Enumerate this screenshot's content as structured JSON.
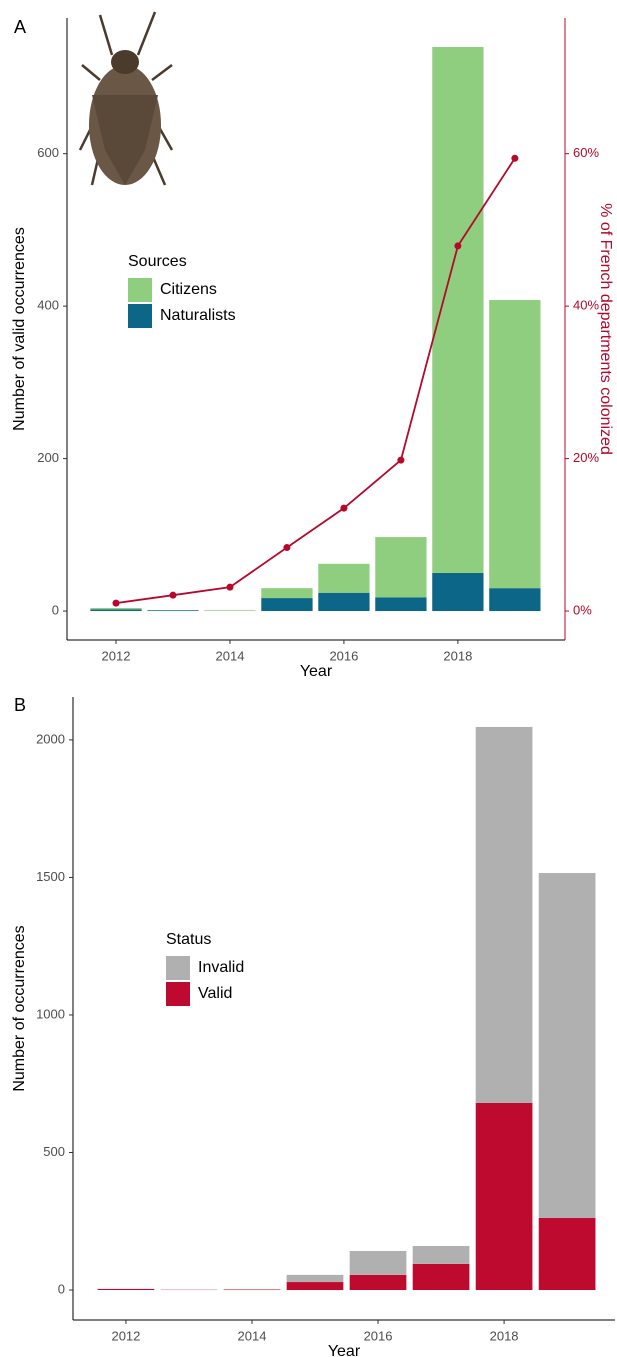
{
  "chart_data": [
    {
      "type": "bar",
      "panel_label": "A",
      "x": [
        2012,
        2013,
        2014,
        2015,
        2016,
        2017,
        2018,
        2019
      ],
      "series": [
        {
          "name": "Citizens",
          "color": "#8fce7f",
          "values": [
            2,
            0,
            1,
            13,
            38,
            79,
            690,
            378
          ]
        },
        {
          "name": "Naturalists",
          "color": "#0b6687",
          "values": [
            2,
            1,
            0,
            17,
            24,
            18,
            50,
            30
          ]
        },
        {
          "type": "line",
          "axis": "y2",
          "color": "#b5082b",
          "values": [
            1.04,
            2.08,
            3.13,
            8.33,
            13.5,
            19.8,
            47.9,
            59.4
          ]
        }
      ],
      "legend_title": "Sources",
      "legend": "left",
      "xlabel": "Year",
      "ylabel": "Number of valid occurrences",
      "y2label": "% of French departments colonized",
      "xlim": [
        2011.14,
        2019.88
      ],
      "xticks": [
        2012,
        2014,
        2016,
        2018
      ],
      "ylim": [
        -38,
        778
      ],
      "yticks": [
        0,
        200,
        400,
        600
      ],
      "y2lim": [
        -3.8,
        77.8
      ],
      "y2ticks": [
        {
          "value": 0,
          "label": "0%"
        },
        {
          "value": 20,
          "label": "20%"
        },
        {
          "value": 40,
          "label": "40%"
        },
        {
          "value": 60,
          "label": "60%"
        }
      ],
      "grid": false
    },
    {
      "type": "bar",
      "panel_label": "B",
      "x": [
        2012,
        2013,
        2014,
        2015,
        2016,
        2017,
        2018,
        2019
      ],
      "series": [
        {
          "name": "Invalid",
          "color": "#b0b0b0",
          "values": [
            0,
            0,
            0,
            26,
            87,
            65,
            1367,
            1254
          ]
        },
        {
          "name": "Valid",
          "color": "#bf0a2f",
          "values": [
            4,
            1,
            2,
            29,
            55,
            95,
            680,
            262
          ]
        }
      ],
      "legend_title": "Status",
      "legend": "left",
      "xlabel": "Year",
      "ylabel": "Number of occurrences",
      "xlim": [
        2011.16,
        2019.76
      ],
      "xticks": [
        2012,
        2014,
        2016,
        2018
      ],
      "ylim": [
        -109,
        2156
      ],
      "yticks": [
        0,
        500,
        1000,
        1500,
        2000
      ],
      "grid": false
    }
  ]
}
